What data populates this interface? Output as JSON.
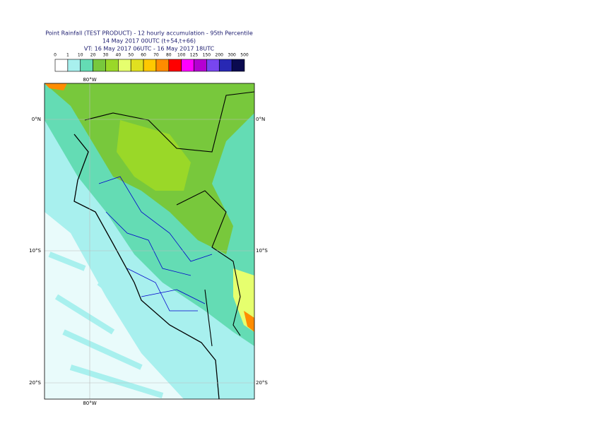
{
  "header": {
    "title_lines": [
      "Point Rainfall (TEST PRODUCT) - 12 hourly accumulation - 95th Percentile",
      "14 May 2017 00UTC (t+54,t+66)",
      "VT: 16 May 2017 06UTC - 16 May 2017 18UTC"
    ]
  },
  "legend": {
    "labels": [
      "0",
      "1",
      "10",
      "20",
      "30",
      "40",
      "50",
      "60",
      "70",
      "80",
      "100",
      "125",
      "150",
      "200",
      "300",
      "500"
    ],
    "colors": [
      "#ffffff",
      "#a8f0ee",
      "#64dcb4",
      "#78c83c",
      "#9ad828",
      "#e6ff6e",
      "#e0e020",
      "#ffc800",
      "#ff8c00",
      "#ff0000",
      "#ff00ff",
      "#b400d2",
      "#7846f0",
      "#2828b4",
      "#0a0a50"
    ]
  },
  "map": {
    "lon_labels": [
      "80°W"
    ],
    "lat_labels": [
      "0°N",
      "10°S",
      "20°S"
    ]
  }
}
